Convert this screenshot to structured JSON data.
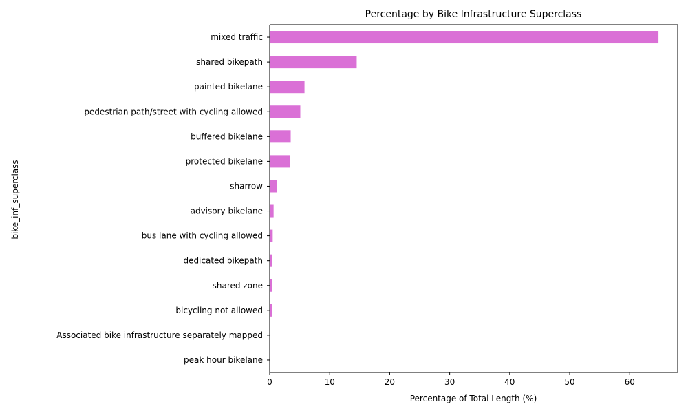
{
  "chart_data": {
    "type": "bar",
    "orientation": "horizontal",
    "title": "Percentage by Bike Infrastructure Superclass",
    "xlabel": "Percentage of Total Length (%)",
    "ylabel": "bike_inf_superclass",
    "xlim": [
      0,
      68
    ],
    "x_ticks": [
      0,
      10,
      20,
      30,
      40,
      50,
      60
    ],
    "grid": false,
    "legend": "none",
    "bar_color": "#da70d6",
    "categories": [
      "mixed traffic",
      "shared bikepath",
      "painted bikelane",
      "pedestrian path/street with cycling allowed",
      "buffered bikelane",
      "protected bikelane",
      "sharrow",
      "advisory bikelane",
      "bus lane with cycling allowed",
      "dedicated bikepath",
      "shared zone",
      "bicycling not allowed",
      "Associated bike infrastructure separately mapped",
      "peak hour bikelane"
    ],
    "values": [
      64.8,
      14.5,
      5.8,
      5.1,
      3.5,
      3.4,
      1.2,
      0.65,
      0.5,
      0.4,
      0.35,
      0.35,
      0.05,
      0.03
    ]
  }
}
